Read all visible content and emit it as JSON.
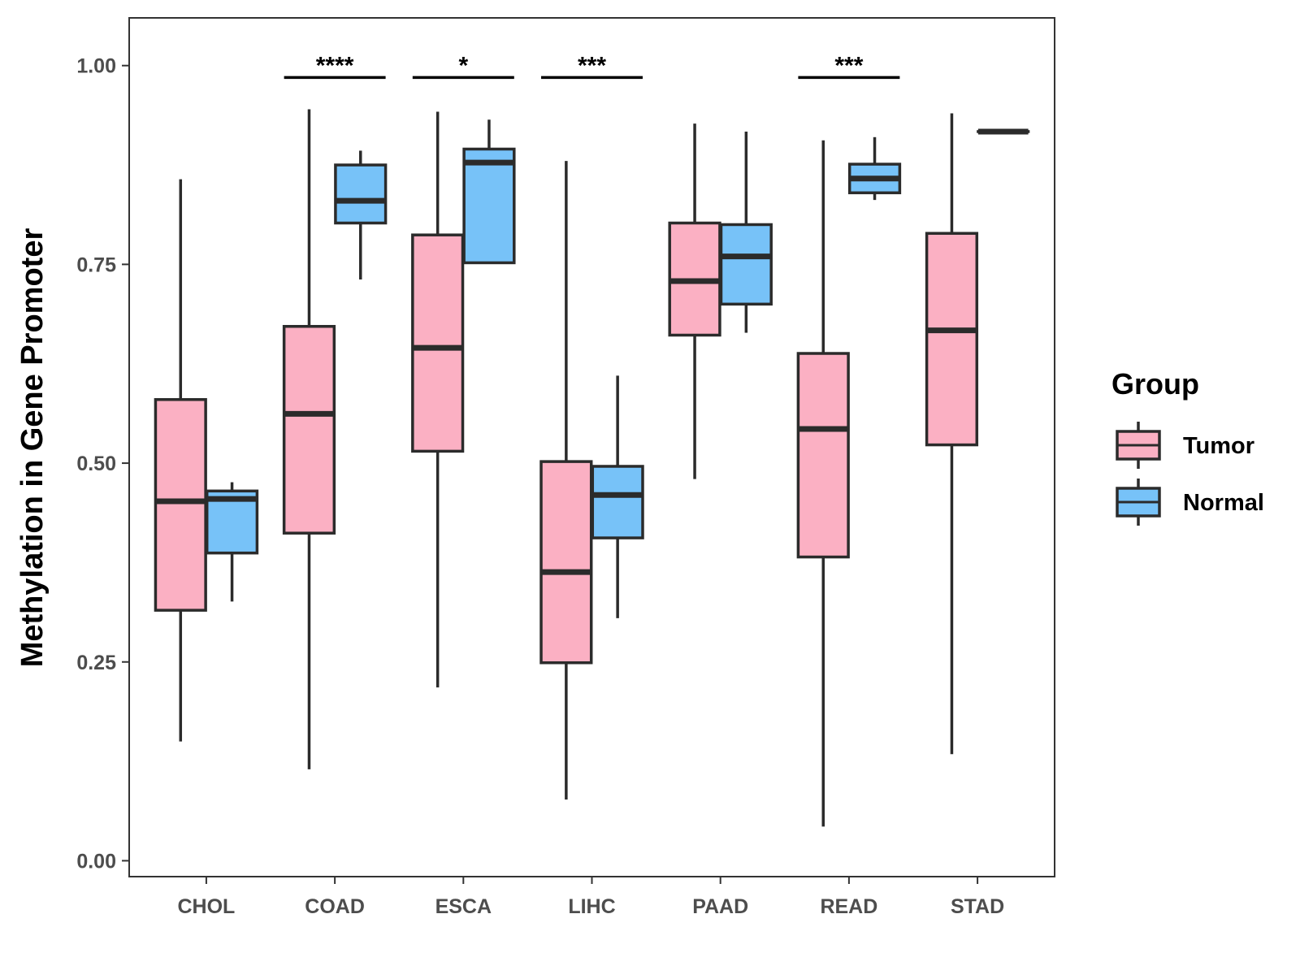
{
  "chart_data": {
    "type": "boxplot",
    "title": "",
    "xlabel": "",
    "ylabel": "Methylation in Gene Promoter",
    "ylim": [
      -0.02,
      1.06
    ],
    "yticks": [
      {
        "value": 0.0,
        "label": "0.00"
      },
      {
        "value": 0.25,
        "label": "0.25"
      },
      {
        "value": 0.5,
        "label": "0.50"
      },
      {
        "value": 0.75,
        "label": "0.75"
      },
      {
        "value": 1.0,
        "label": "1.00"
      }
    ],
    "categories": [
      "CHOL",
      "COAD",
      "ESCA",
      "LIHC",
      "PAAD",
      "READ",
      "STAD"
    ],
    "legend": {
      "title": "Group",
      "position": "right",
      "entries": [
        {
          "name": "Tumor",
          "color": "#FBB0C3"
        },
        {
          "name": "Normal",
          "color": "#77C2F8"
        }
      ]
    },
    "series": [
      {
        "name": "Tumor",
        "color": "#FBB0C3",
        "boxes": [
          {
            "category": "CHOL",
            "min": 0.15,
            "q1": 0.315,
            "median": 0.452,
            "q3": 0.58,
            "max": 0.857
          },
          {
            "category": "COAD",
            "min": 0.115,
            "q1": 0.412,
            "median": 0.562,
            "q3": 0.672,
            "max": 0.945
          },
          {
            "category": "ESCA",
            "min": 0.218,
            "q1": 0.515,
            "median": 0.645,
            "q3": 0.787,
            "max": 0.942
          },
          {
            "category": "LIHC",
            "min": 0.077,
            "q1": 0.249,
            "median": 0.363,
            "q3": 0.502,
            "max": 0.88
          },
          {
            "category": "PAAD",
            "min": 0.48,
            "q1": 0.661,
            "median": 0.729,
            "q3": 0.802,
            "max": 0.927
          },
          {
            "category": "READ",
            "min": 0.043,
            "q1": 0.382,
            "median": 0.543,
            "q3": 0.638,
            "max": 0.906
          },
          {
            "category": "STAD",
            "min": 0.134,
            "q1": 0.523,
            "median": 0.667,
            "q3": 0.789,
            "max": 0.94
          }
        ]
      },
      {
        "name": "Normal",
        "color": "#77C2F8",
        "boxes": [
          {
            "category": "CHOL",
            "min": 0.326,
            "q1": 0.387,
            "median": 0.455,
            "q3": 0.465,
            "max": 0.476
          },
          {
            "category": "COAD",
            "min": 0.731,
            "q1": 0.802,
            "median": 0.83,
            "q3": 0.875,
            "max": 0.893
          },
          {
            "category": "ESCA",
            "min": 0.752,
            "q1": 0.752,
            "median": 0.878,
            "q3": 0.895,
            "max": 0.932
          },
          {
            "category": "LIHC",
            "min": 0.305,
            "q1": 0.406,
            "median": 0.46,
            "q3": 0.496,
            "max": 0.61
          },
          {
            "category": "PAAD",
            "min": 0.664,
            "q1": 0.7,
            "median": 0.76,
            "q3": 0.8,
            "max": 0.917
          },
          {
            "category": "READ",
            "min": 0.831,
            "q1": 0.84,
            "median": 0.858,
            "q3": 0.876,
            "max": 0.91
          },
          {
            "category": "STAD",
            "min": 0.917,
            "q1": 0.917,
            "median": 0.917,
            "q3": 0.917,
            "max": 0.917
          }
        ]
      }
    ],
    "significance": [
      {
        "category": "COAD",
        "label": "****"
      },
      {
        "category": "ESCA",
        "label": "*"
      },
      {
        "category": "LIHC",
        "label": "***"
      },
      {
        "category": "READ",
        "label": "***"
      }
    ],
    "grid": false
  }
}
